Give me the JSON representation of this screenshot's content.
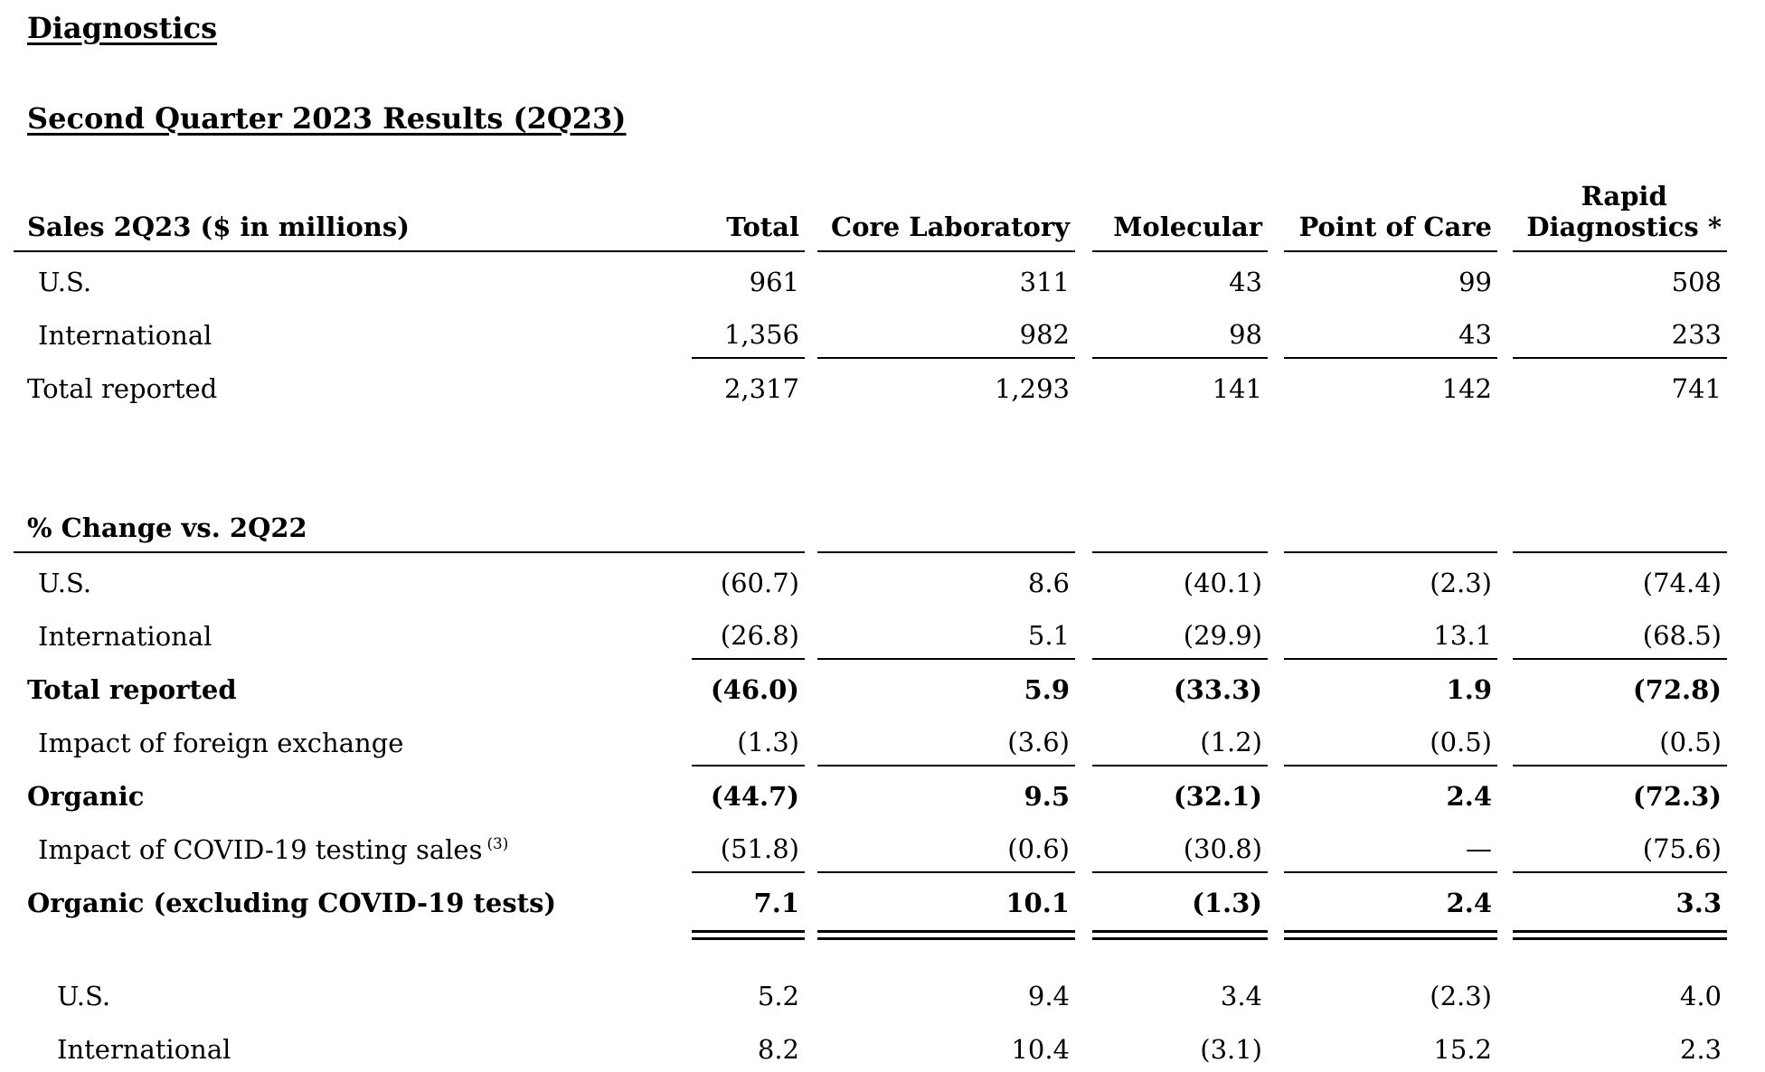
{
  "document": {
    "heading": "Diagnostics",
    "subheading": "Second Quarter 2023 Results (2Q23)"
  },
  "colors": {
    "text": "#000000",
    "background": "#ffffff",
    "rule": "#000000"
  },
  "sales_table": {
    "title": "Sales 2Q23 ($ in millions)",
    "column_headers": {
      "total": "Total",
      "core_laboratory": "Core Laboratory",
      "molecular": "Molecular",
      "point_of_care": "Point of Care",
      "rapid_line1": "Rapid",
      "rapid_line2": "Diagnostics *"
    },
    "rows": [
      {
        "label": "U.S.",
        "values": [
          "961",
          "311",
          "43",
          "99",
          "508"
        ]
      },
      {
        "label": "International",
        "values": [
          "1,356",
          "982",
          "98",
          "43",
          "233"
        ]
      },
      {
        "label": "Total reported",
        "values": [
          "2,317",
          "1,293",
          "141",
          "142",
          "741"
        ]
      }
    ]
  },
  "change_table": {
    "title": "% Change vs. 2Q22",
    "rows": [
      {
        "label": "U.S.",
        "values": [
          "(60.7)",
          "8.6",
          "(40.1)",
          "(2.3)",
          "(74.4)"
        ]
      },
      {
        "label": "International",
        "values": [
          "(26.8)",
          "5.1",
          "(29.9)",
          "13.1",
          "(68.5)"
        ]
      },
      {
        "label": "Total reported",
        "values": [
          "(46.0)",
          "5.9",
          "(33.3)",
          "1.9",
          "(72.8)"
        ]
      },
      {
        "label": "Impact of foreign exchange",
        "values": [
          "(1.3)",
          "(3.6)",
          "(1.2)",
          "(0.5)",
          "(0.5)"
        ]
      },
      {
        "label": "Organic",
        "values": [
          "(44.7)",
          "9.5",
          "(32.1)",
          "2.4",
          "(72.3)"
        ]
      },
      {
        "label": "Impact of COVID-19 testing sales",
        "footnote": "(3)",
        "values": [
          "(51.8)",
          "(0.6)",
          "(30.8)",
          "—",
          "(75.6)"
        ]
      },
      {
        "label": "Organic (excluding COVID-19 tests)",
        "values": [
          "7.1",
          "10.1",
          "(1.3)",
          "2.4",
          "3.3"
        ]
      },
      {
        "label": "U.S.",
        "values": [
          "5.2",
          "9.4",
          "3.4",
          "(2.3)",
          "4.0"
        ]
      },
      {
        "label": "International",
        "values": [
          "8.2",
          "10.4",
          "(3.1)",
          "15.2",
          "2.3"
        ]
      }
    ]
  }
}
